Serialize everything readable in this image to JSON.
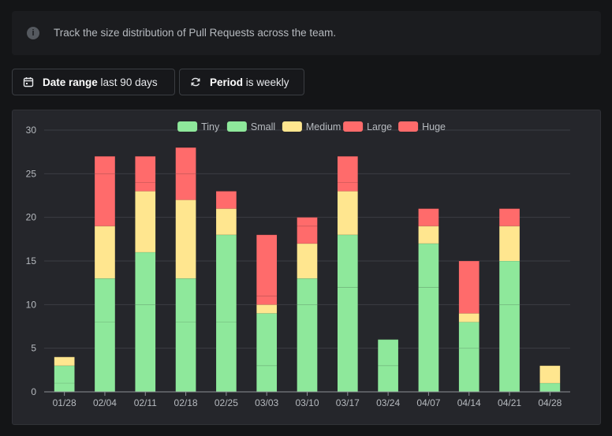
{
  "info": {
    "text": "Track the size distribution of Pull Requests across the team."
  },
  "filters": {
    "date_range": {
      "label": "Date range",
      "value": "last 90 days"
    },
    "period": {
      "label": "Period",
      "value": "is weekly"
    }
  },
  "chart_data": {
    "type": "bar",
    "stacked": true,
    "categories": [
      "01/28",
      "02/04",
      "02/11",
      "02/18",
      "02/25",
      "03/03",
      "03/10",
      "03/17",
      "03/24",
      "04/07",
      "04/14",
      "04/21",
      "04/28"
    ],
    "series": [
      {
        "name": "Tiny",
        "color": "#8ee89b",
        "values": [
          1,
          8,
          10,
          8,
          8,
          3,
          10,
          12,
          3,
          12,
          5,
          10,
          1
        ]
      },
      {
        "name": "Small",
        "color": "#8ee89b",
        "values": [
          2,
          5,
          6,
          5,
          10,
          6,
          3,
          6,
          3,
          5,
          3,
          5,
          0
        ]
      },
      {
        "name": "Medium",
        "color": "#ffe68f",
        "values": [
          1,
          6,
          7,
          9,
          3,
          1,
          4,
          5,
          0,
          2,
          1,
          4,
          2
        ]
      },
      {
        "name": "Large",
        "color": "#ff6b6b",
        "values": [
          0,
          6,
          1,
          3,
          2,
          1,
          2,
          1,
          0,
          2,
          0,
          2,
          0
        ]
      },
      {
        "name": "Huge",
        "color": "#ff6b6b",
        "values": [
          0,
          2,
          3,
          3,
          0,
          7,
          1,
          3,
          0,
          0,
          6,
          0,
          0
        ]
      }
    ],
    "ylim": [
      0,
      30
    ],
    "yticks": [
      0,
      5,
      10,
      15,
      20,
      25,
      30
    ],
    "grid": true,
    "legend": "top-center"
  }
}
